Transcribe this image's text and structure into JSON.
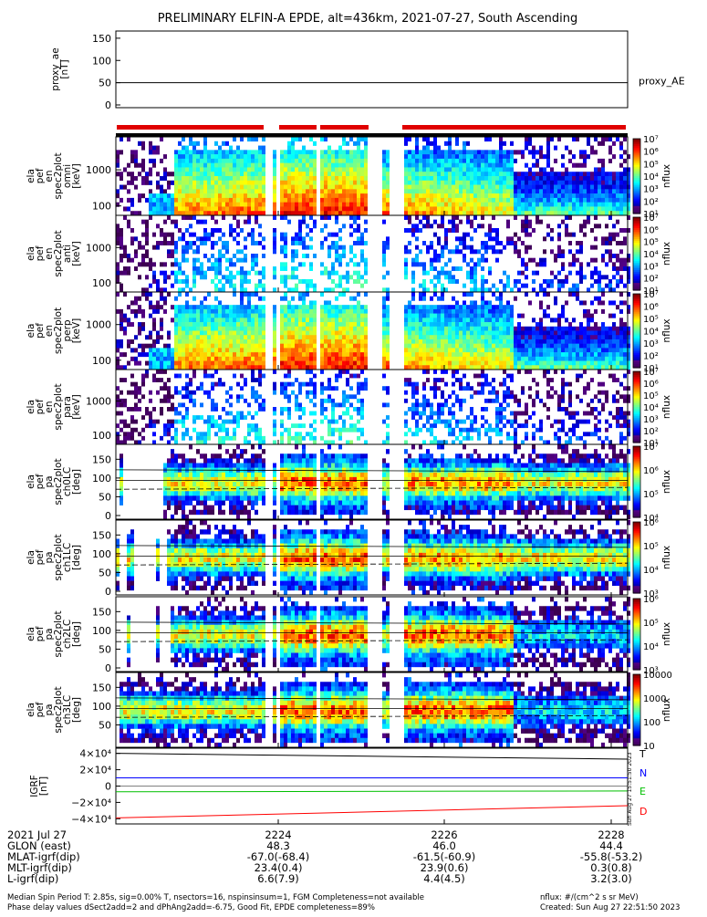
{
  "title": "PRELIMINARY ELFIN-A EPDE, alt=436km, 2021-07-27, South Ascending",
  "colors": {
    "red_bar": "#e00000",
    "black_bar": "#000000",
    "geo_T": "#000000",
    "geo_N": "#0000ff",
    "geo_E": "#00c000",
    "geo_D": "#ff0000"
  },
  "panels": {
    "proxy": {
      "ylabel": "proxy_ae\n[nT]",
      "yticks": [
        "150",
        "100",
        "50",
        "0"
      ],
      "series_label": "proxy_AE",
      "value": 50
    },
    "spectro": [
      {
        "ylabel": "ela\npef\nen\nspec2plot\nomni\n[keV]",
        "yticks": [
          "1000",
          "100"
        ],
        "cbar_ticks": [
          "10⁷",
          "10⁶",
          "10⁵",
          "10⁴",
          "10³",
          "10²",
          "10¹"
        ],
        "cbar_label": "nflux"
      },
      {
        "ylabel": "ela\npef\nen\nspec2plot\nanti\n[keV]",
        "yticks": [
          "1000",
          "100"
        ],
        "cbar_ticks": [
          "10⁷",
          "10⁶",
          "10⁵",
          "10⁴",
          "10³",
          "10²",
          "10¹"
        ],
        "cbar_label": "nflux"
      },
      {
        "ylabel": "ela\npef\nen\nspec2plot\nperp\n[keV]",
        "yticks": [
          "1000",
          "100"
        ],
        "cbar_ticks": [
          "10⁷",
          "10⁶",
          "10⁵",
          "10⁴",
          "10³",
          "10²",
          "10¹"
        ],
        "cbar_label": "nflux"
      },
      {
        "ylabel": "ela\npef\nen\nspec2plot\npara\n[keV]",
        "yticks": [
          "1000",
          "100"
        ],
        "cbar_ticks": [
          "10⁷",
          "10⁶",
          "10⁵",
          "10⁴",
          "10³",
          "10²",
          "10¹"
        ],
        "cbar_label": "nflux"
      }
    ],
    "pitch": [
      {
        "ylabel": "ela\npef\npa\nspec2plot\nch0LC\n[deg]",
        "yticks": [
          "150",
          "100",
          "50",
          "0"
        ],
        "cbar_ticks": [
          "10⁷",
          "10⁶",
          "10⁵",
          "10⁴"
        ],
        "cbar_label": "nflux"
      },
      {
        "ylabel": "ela\npef\npa\nspec2plot\nch1LC\n[deg]",
        "yticks": [
          "150",
          "100",
          "50",
          "0"
        ],
        "cbar_ticks": [
          "10⁶",
          "10⁵",
          "10⁴",
          "10³"
        ],
        "cbar_label": "nflux"
      },
      {
        "ylabel": "ela\npef\npa\nspec2plot\nch2LC\n[deg]",
        "yticks": [
          "150",
          "100",
          "50",
          "0"
        ],
        "cbar_ticks": [
          "10⁶",
          "10⁵",
          "10⁴",
          "10³"
        ],
        "cbar_label": "nflux"
      },
      {
        "ylabel": "ela\npef\npa\nspec2plot\nch3LC\n[deg]",
        "yticks": [
          "150",
          "100",
          "50"
        ],
        "cbar_ticks": [
          "10000",
          "1000",
          "100",
          "10"
        ],
        "cbar_label": "nflux"
      }
    ],
    "geo": {
      "ylabel": "IGRF\n[nT]",
      "yticks": [
        "4×10⁴",
        "2×10⁴",
        "0",
        "−2×10⁴",
        "−4×10⁴"
      ],
      "legend": [
        "T",
        "N",
        "E",
        "D"
      ]
    }
  },
  "bottom": {
    "rows": [
      [
        "2021 Jul 27",
        "2224",
        "2226",
        "2228"
      ],
      [
        "GLON (east)",
        "48.3",
        "46.0",
        "44.4"
      ],
      [
        "MLAT-igrf(dip)",
        "-67.0(-68.4)",
        "-61.5(-60.9)",
        "-55.8(-53.2)"
      ],
      [
        "MLT-igrf(dip)",
        "23.4(0.4)",
        "23.9(0.6)",
        "0.3(0.8)"
      ],
      [
        "L-igrf(dip)",
        "6.6(7.9)",
        "4.4(4.5)",
        "3.2(3.0)"
      ]
    ],
    "footer_line1": "Median Spin Period T: 2.85s, sig=0.00% T, nsectors=16, nspinsinsum=1, FGM Completeness=not available",
    "footer_line2": "Phase delay values dSect2add=2 and dPhAng2add=-6.75, Good Fit, EPDE completeness=89%",
    "footer_right1": "nflux: #/(cm^2 s sr MeV)",
    "footer_right2": "Created: Sun Aug 27 22:51:50 2023",
    "side_stamp": "Sun Aug 27 15:51:50 2023"
  },
  "chart_data": {
    "type": "heatmap",
    "title": "PRELIMINARY ELFIN-A EPDE, alt=436km, 2021-07-27, South Ascending",
    "x_ticks": [
      "2224",
      "2226",
      "2228"
    ],
    "series": [
      {
        "name": "proxy_AE",
        "values": [
          50,
          50
        ]
      }
    ]
  }
}
